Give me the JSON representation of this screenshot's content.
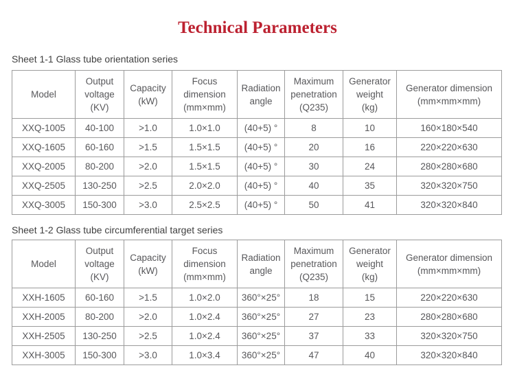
{
  "title": "Technical Parameters",
  "colors": {
    "title_red": "#bc2130",
    "border_gray": "#9b9b9b",
    "text_gray": "#57575a",
    "label_dark": "#3f3f3f",
    "background": "#ffffff"
  },
  "tables": [
    {
      "caption": "Sheet 1-1 Glass tube orientation series",
      "headers": [
        [
          "Model"
        ],
        [
          "Output",
          "voltage",
          "(KV)"
        ],
        [
          "Capacity",
          "(kW)"
        ],
        [
          "Focus",
          "dimension",
          "(mm×mm)"
        ],
        [
          "Radiation",
          "angle"
        ],
        [
          "Maximum",
          "penetration",
          "(Q235)"
        ],
        [
          "Generator",
          "weight",
          "(kg)"
        ],
        [
          "Generator dimension",
          "(mm×mm×mm)"
        ]
      ],
      "rows": [
        [
          "XXQ-1005",
          "40-100",
          ">1.0",
          "1.0×1.0",
          "(40+5) °",
          "8",
          "10",
          "160×180×540"
        ],
        [
          "XXQ-1605",
          "60-160",
          ">1.5",
          "1.5×1.5",
          "(40+5) °",
          "20",
          "16",
          "220×220×630"
        ],
        [
          "XXQ-2005",
          "80-200",
          ">2.0",
          "1.5×1.5",
          "(40+5) °",
          "30",
          "24",
          "280×280×680"
        ],
        [
          "XXQ-2505",
          "130-250",
          ">2.5",
          "2.0×2.0",
          "(40+5) °",
          "40",
          "35",
          "320×320×750"
        ],
        [
          "XXQ-3005",
          "150-300",
          ">3.0",
          "2.5×2.5",
          "(40+5) °",
          "50",
          "41",
          "320×320×840"
        ]
      ]
    },
    {
      "caption": "Sheet 1-2 Glass tube circumferential target series",
      "headers": [
        [
          "Model"
        ],
        [
          "Output",
          "voltage",
          "(KV)"
        ],
        [
          "Capacity",
          "(kW)"
        ],
        [
          "Focus",
          "dimension",
          "(mm×mm)"
        ],
        [
          "Radiation",
          "angle"
        ],
        [
          "Maximum",
          "penetration",
          "(Q235)"
        ],
        [
          "Generator",
          "weight",
          "(kg)"
        ],
        [
          "Generator dimension",
          "(mm×mm×mm)"
        ]
      ],
      "rows": [
        [
          "XXH-1605",
          "60-160",
          ">1.5",
          "1.0×2.0",
          "360°×25°",
          "18",
          "15",
          "220×220×630"
        ],
        [
          "XXH-2005",
          "80-200",
          ">2.0",
          "1.0×2.4",
          "360°×25°",
          "27",
          "23",
          "280×280×680"
        ],
        [
          "XXH-2505",
          "130-250",
          ">2.5",
          "1.0×2.4",
          "360°×25°",
          "37",
          "33",
          "320×320×750"
        ],
        [
          "XXH-3005",
          "150-300",
          ">3.0",
          "1.0×3.4",
          "360°×25°",
          "47",
          "40",
          "320×320×840"
        ]
      ]
    }
  ]
}
